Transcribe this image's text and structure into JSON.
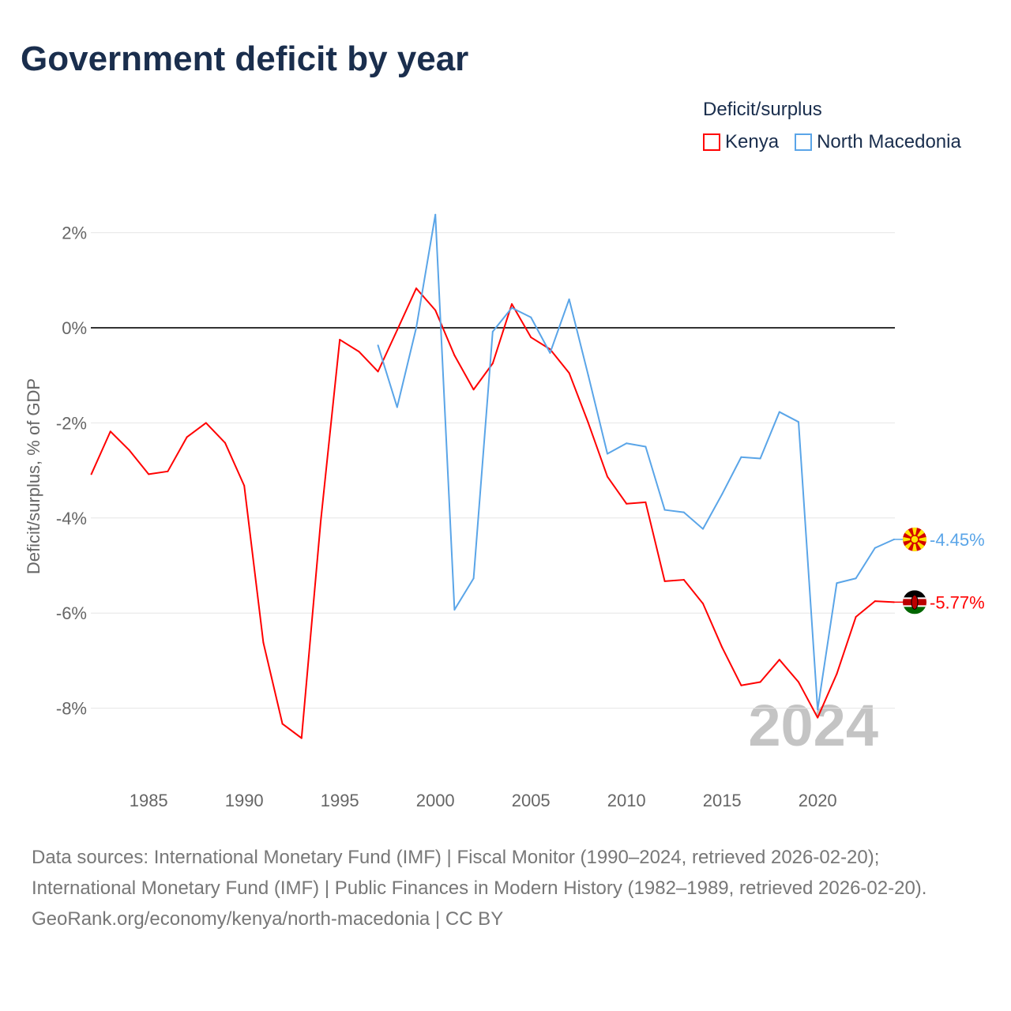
{
  "title": "Government deficit by year",
  "legend": {
    "title": "Deficit/surplus",
    "items": [
      {
        "name": "Kenya",
        "color": "#ff0000"
      },
      {
        "name": "North Macedonia",
        "color": "#5aa5e8"
      }
    ]
  },
  "footer": {
    "line1": "Data sources: International Monetary Fund (IMF) | Fiscal Monitor (1990–2024, retrieved 2026-02-20);",
    "line2": "International Monetary Fund (IMF) | Public Finances in Modern History (1982–1989, retrieved 2026-02-20).",
    "line3": "GeoRank.org/economy/kenya/north-macedonia | CC BY"
  },
  "chart_data": {
    "type": "line",
    "title": "Government deficit by year",
    "ylabel": "Deficit/surplus, % of GDP",
    "xlabel": "",
    "xlim": [
      1982,
      2024
    ],
    "ylim": [
      -9.1,
      2.6
    ],
    "xticks": [
      1985,
      1990,
      1995,
      2000,
      2005,
      2010,
      2015,
      2020
    ],
    "yticks": [
      2,
      0,
      -2,
      -4,
      -6,
      -8
    ],
    "ytick_labels": [
      "2%",
      "0%",
      "-2%",
      "-4%",
      "-6%",
      "-8%"
    ],
    "watermark_year": "2024",
    "series": [
      {
        "name": "Kenya",
        "color": "#ff0000",
        "start_year": 1982,
        "end_label": "-5.77%",
        "values": [
          -3.08,
          -2.18,
          -2.58,
          -3.08,
          -3.02,
          -2.3,
          -2.0,
          -2.42,
          -3.32,
          -6.62,
          -8.33,
          -8.63,
          -4.08,
          -0.25,
          -0.5,
          -0.92,
          -0.05,
          0.83,
          0.37,
          -0.58,
          -1.3,
          -0.75,
          0.5,
          -0.2,
          -0.45,
          -0.95,
          -2.0,
          -3.13,
          -3.7,
          -3.67,
          -5.33,
          -5.3,
          -5.8,
          -6.72,
          -7.52,
          -7.45,
          -6.98,
          -7.45,
          -8.2,
          -7.28,
          -6.08,
          -5.75,
          -5.77
        ]
      },
      {
        "name": "North Macedonia",
        "color": "#5aa5e8",
        "start_year": 1997,
        "end_label": "-4.45%",
        "values": [
          -0.37,
          -1.67,
          0.0,
          2.38,
          -5.93,
          -5.27,
          -0.08,
          0.42,
          0.22,
          -0.53,
          0.6,
          -1.0,
          -2.65,
          -2.43,
          -2.5,
          -3.83,
          -3.88,
          -4.23,
          -3.5,
          -2.72,
          -2.75,
          -1.77,
          -1.98,
          -8.03,
          -5.37,
          -5.27,
          -4.63,
          -4.45
        ]
      }
    ]
  }
}
